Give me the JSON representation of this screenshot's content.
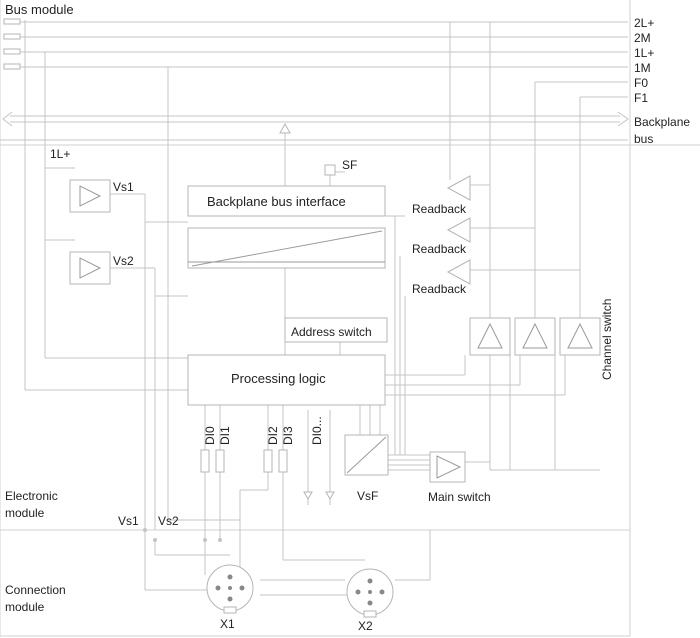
{
  "bus_module": {
    "title": "Bus module",
    "lines": [
      "2L+",
      "2M",
      "1L+",
      "1M",
      "F0",
      "F1"
    ],
    "backplane_label_1": "Backplane",
    "backplane_label_2": "bus"
  },
  "electronic_module": {
    "title_1": "Electronic",
    "title_2": "module",
    "supply_label": "1L+",
    "vs1": "Vs1",
    "vs2": "Vs2",
    "sf": "SF",
    "backplane_interface": "Backplane bus interface",
    "readback": [
      "Readback",
      "Readback",
      "Readback"
    ],
    "address_switch": "Address switch",
    "processing_logic": "Processing logic",
    "inputs": [
      "DI0",
      "DI1",
      "DI2",
      "DI3",
      "DI0..."
    ],
    "vsf": "VsF",
    "main_switch": "Main switch",
    "channel_switch": "Channel switch",
    "out_vs1": "Vs1",
    "out_vs2": "Vs2"
  },
  "connection_module": {
    "title_1": "Connection",
    "title_2": "module",
    "x1": "X1",
    "x2": "X2"
  }
}
